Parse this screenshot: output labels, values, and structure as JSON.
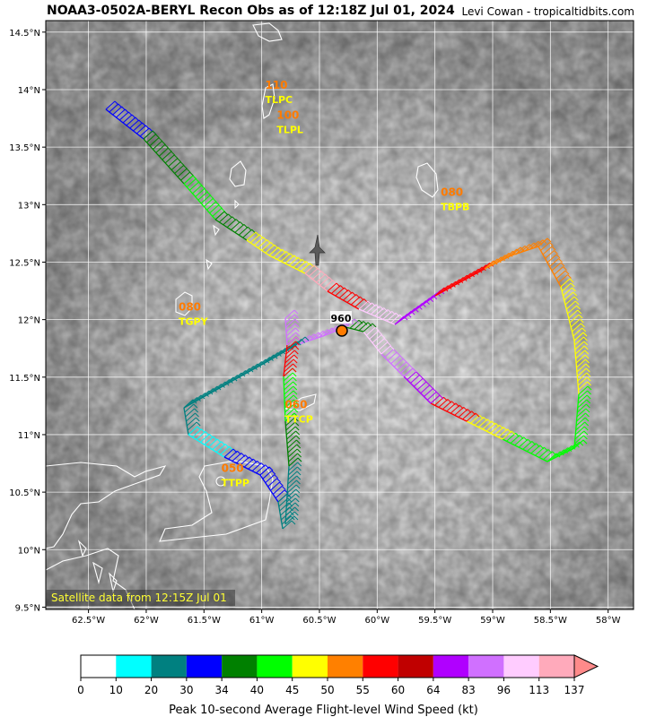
{
  "header": {
    "title": "NOAA3-0502A-BERYL Recon Obs as of 12:18Z Jul 01, 2024",
    "credit": "Levi Cowan - tropicaltidbits.com"
  },
  "map": {
    "lon_range": [
      -62.87,
      -57.78
    ],
    "lat_range": [
      9.48,
      14.6
    ],
    "lat_ticks": [
      "14.5°N",
      "14°N",
      "13.5°N",
      "13°N",
      "12.5°N",
      "12°N",
      "11.5°N",
      "11°N",
      "10.5°N",
      "10°N",
      "9.5°N"
    ],
    "lat_tick_values": [
      14.5,
      14,
      13.5,
      13,
      12.5,
      12,
      11.5,
      11,
      10.5,
      10,
      9.5
    ],
    "lon_ticks": [
      "62.5°W",
      "62°W",
      "61.5°W",
      "61°W",
      "60.5°W",
      "60°W",
      "59.5°W",
      "59°W",
      "58.5°W",
      "58°W"
    ],
    "lon_tick_values": [
      -62.5,
      -62,
      -61.5,
      -61,
      -60.5,
      -60,
      -59.5,
      -59,
      -58.5,
      -58
    ],
    "satellite_note": "Satellite data from 12:15Z Jul 01",
    "center_pressure": "960",
    "stations": [
      {
        "code": "TLPC",
        "value": "110",
        "lon": -60.97,
        "lat": 13.93
      },
      {
        "code": "TLPL",
        "value": "100",
        "lon": -60.87,
        "lat": 13.67
      },
      {
        "code": "TBPB",
        "value": "080",
        "lon": -59.45,
        "lat": 13.0
      },
      {
        "code": "TGPY",
        "value": "080",
        "lon": -61.72,
        "lat": 12.0
      },
      {
        "code": "TTCP",
        "value": "060",
        "lon": -60.8,
        "lat": 11.15
      },
      {
        "code": "TTPP",
        "value": "050",
        "lon": -61.35,
        "lat": 10.6
      }
    ]
  },
  "colorbar": {
    "ticks": [
      "0",
      "10",
      "20",
      "30",
      "34",
      "40",
      "45",
      "50",
      "55",
      "60",
      "64",
      "83",
      "96",
      "113",
      "137"
    ],
    "colors": [
      "#ffffff",
      "#00ffff",
      "#008080",
      "#0000ff",
      "#008000",
      "#00ff00",
      "#ffff00",
      "#ff8000",
      "#ff0000",
      "#c00000",
      "#b000ff",
      "#d070ff",
      "#ffccff",
      "#ffaabb"
    ],
    "label": "Peak 10-second Average Flight-level Wind Speed (kt)"
  }
}
